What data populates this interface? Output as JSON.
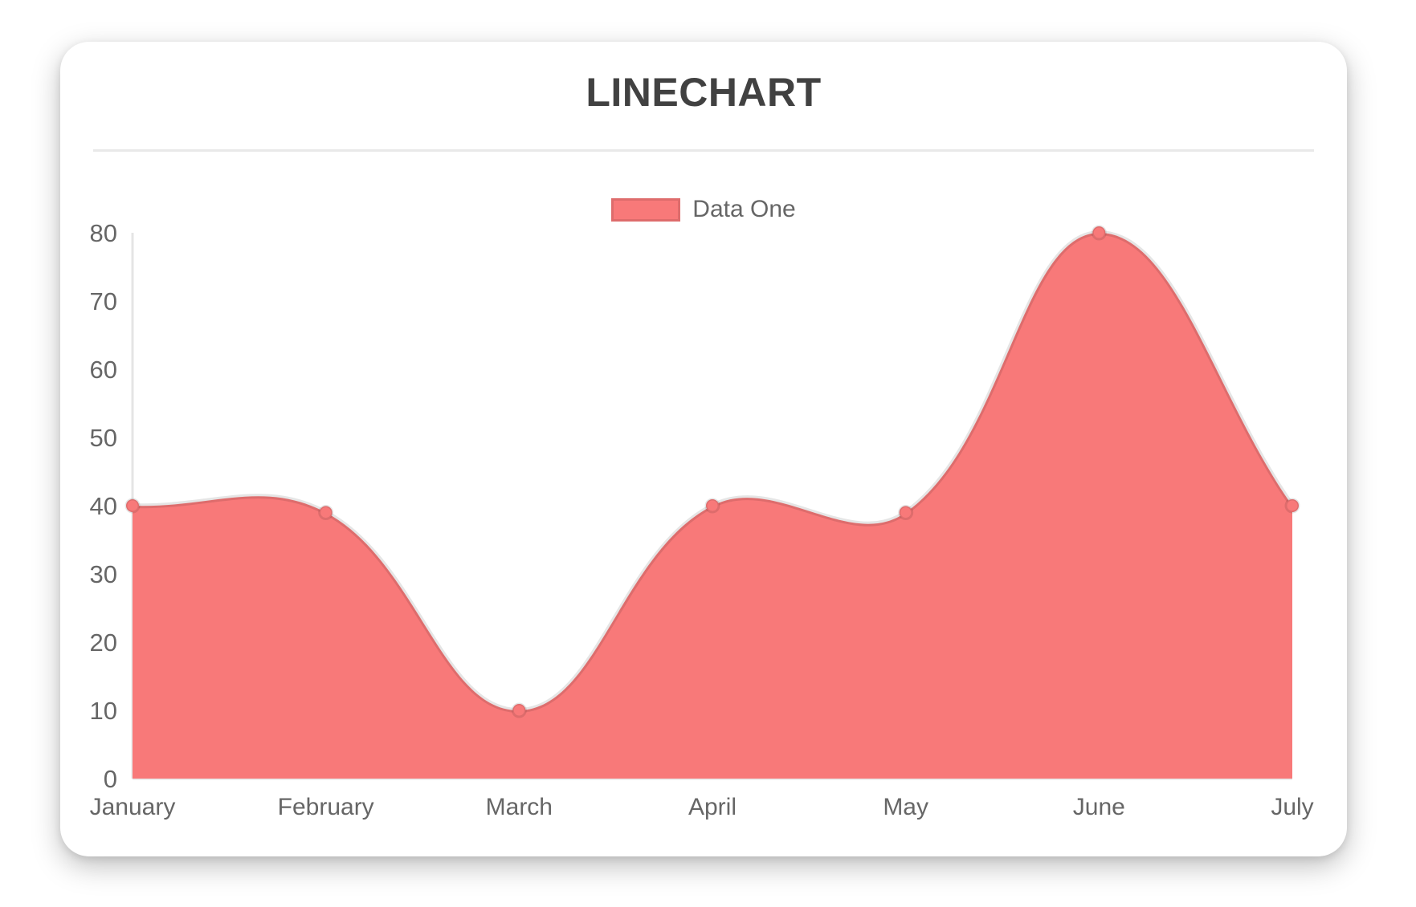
{
  "chart_data": {
    "type": "area",
    "title": "LINECHART",
    "categories": [
      "January",
      "February",
      "March",
      "April",
      "May",
      "June",
      "July"
    ],
    "series": [
      {
        "name": "Data One",
        "values": [
          40,
          39,
          10,
          40,
          39,
          80,
          40
        ]
      }
    ],
    "ylim": [
      0,
      80
    ],
    "yticks": [
      0,
      10,
      20,
      30,
      40,
      50,
      60,
      70,
      80
    ],
    "grid": false,
    "legend_position": "top",
    "smooth": true,
    "tension": 0.4,
    "colors": {
      "fill": "#f87979",
      "line": "rgba(0,0,0,0.1)",
      "point_fill": "#f87979",
      "point_border": "rgba(0,0,0,0.1)",
      "axis_line": "rgba(0,0,0,0.1)",
      "tick_text": "#666666",
      "title_text": "#414141",
      "divider": "#e9e9e9"
    }
  }
}
